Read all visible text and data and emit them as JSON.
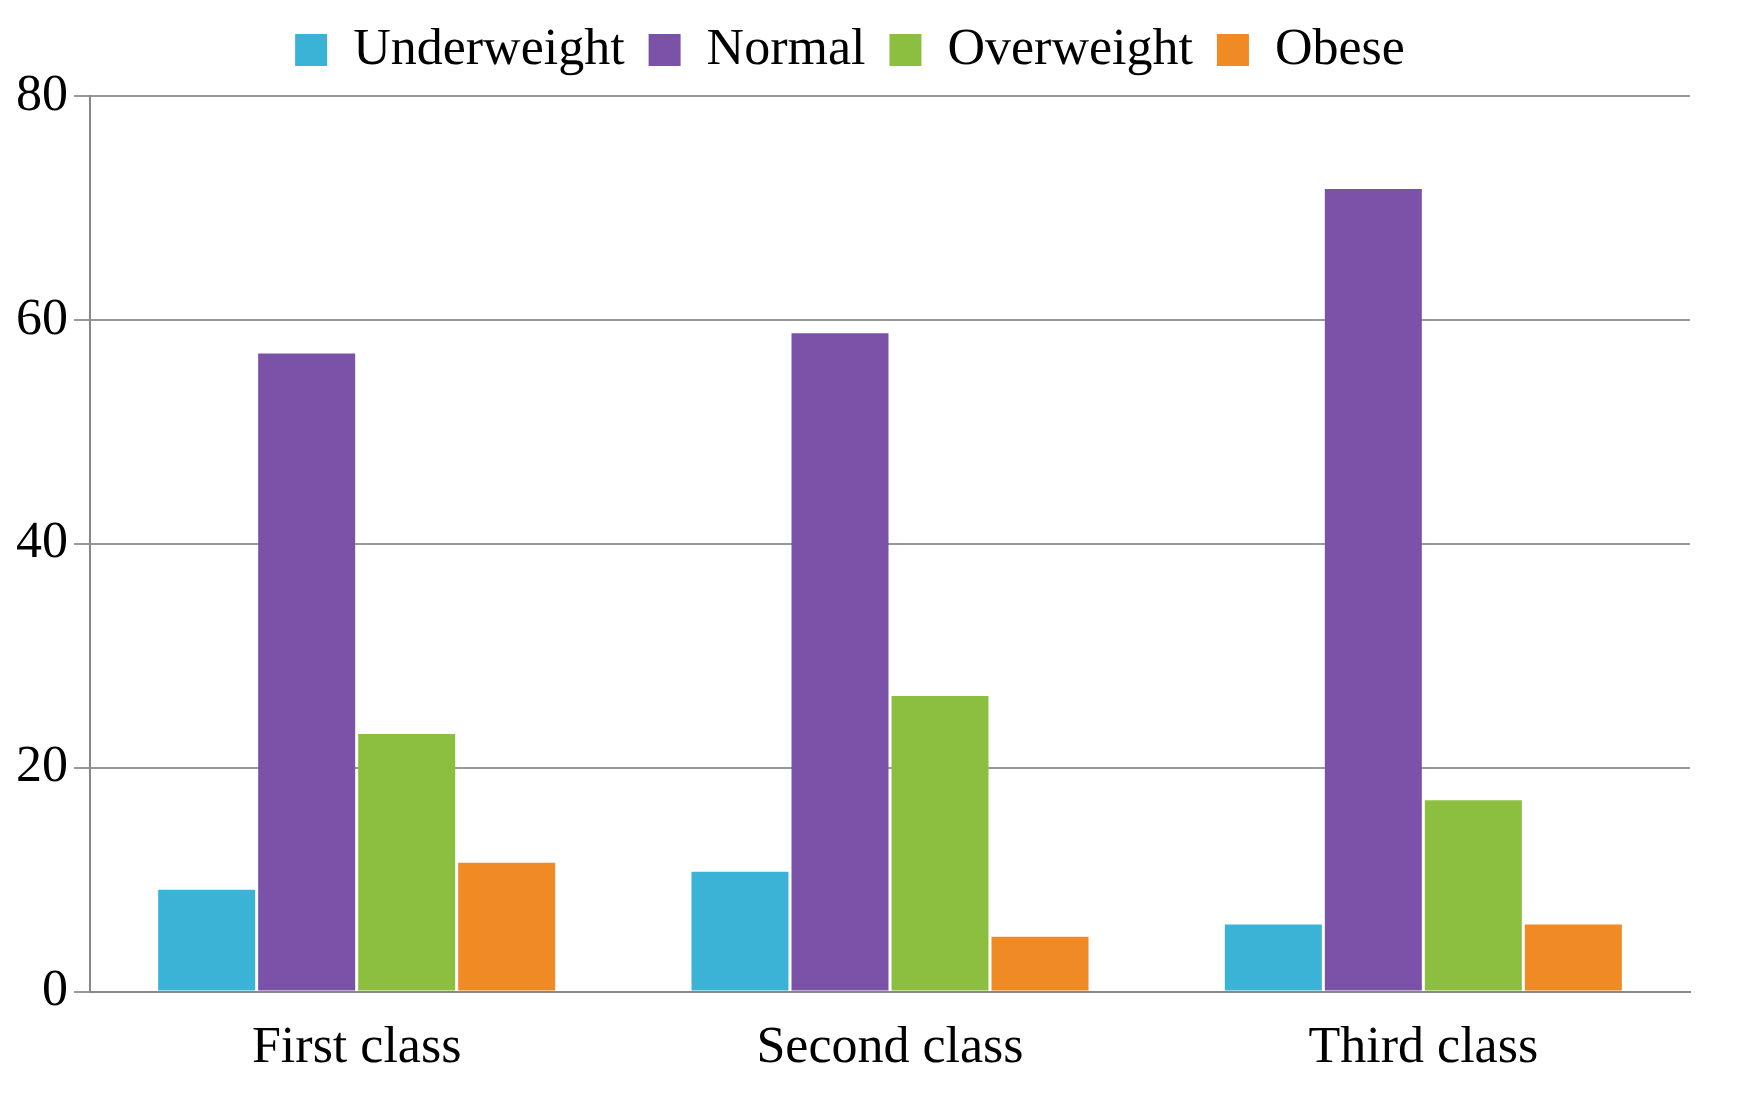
{
  "chart_data": {
    "type": "bar",
    "categories": [
      "First class",
      "Second class",
      "Third class"
    ],
    "series": [
      {
        "name": "Underweight",
        "color": "#3bb3d6",
        "values": [
          9.1,
          10.7,
          6.0
        ]
      },
      {
        "name": "Normal",
        "color": "#7a52a8",
        "values": [
          57,
          58.8,
          71.7
        ]
      },
      {
        "name": "Overweight",
        "color": "#8cbf3f",
        "values": [
          23,
          26.4,
          17.1
        ]
      },
      {
        "name": "Obese",
        "color": "#f08a24",
        "values": [
          11.5,
          4.9,
          6.0
        ]
      }
    ],
    "ylim": [
      0,
      80
    ],
    "yticks": [
      0,
      20,
      40,
      60,
      80
    ],
    "grid": "y",
    "legend": "top"
  }
}
